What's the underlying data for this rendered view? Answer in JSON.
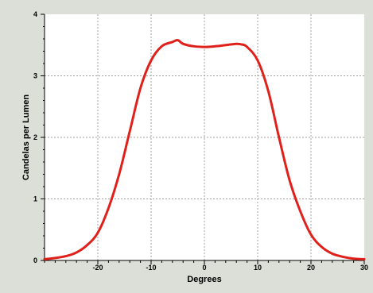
{
  "chart_data": {
    "type": "line",
    "title": "",
    "xlabel": "Degrees",
    "ylabel": "Candelas per Lumen",
    "xlim": [
      -30,
      30
    ],
    "ylim": [
      0,
      4
    ],
    "x_ticks": [
      -20,
      -10,
      0,
      10,
      20,
      30
    ],
    "x_tick_labels": [
      "-20",
      "-10",
      "0",
      "10",
      "20",
      "30"
    ],
    "y_ticks": [
      0,
      1,
      2,
      3,
      4
    ],
    "y_tick_labels": [
      "0",
      "1",
      "2",
      "3",
      "4"
    ],
    "grid": true,
    "legend": "none",
    "colors": {
      "line": "#e0201a",
      "plot_bg": "#ffffff",
      "panel_bg": "#dcdfd8",
      "grid": "#a0a0a0"
    },
    "series": [
      {
        "x": [
          -30,
          -28,
          -26,
          -24,
          -22,
          -20,
          -18,
          -16,
          -14,
          -12,
          -10,
          -8,
          -6,
          -5,
          -4,
          -2,
          0,
          2,
          4,
          6,
          7,
          8,
          10,
          12,
          14,
          16,
          18,
          20,
          22,
          24,
          26,
          28,
          30
        ],
        "values": [
          0.02,
          0.04,
          0.07,
          0.13,
          0.25,
          0.45,
          0.85,
          1.4,
          2.1,
          2.8,
          3.25,
          3.48,
          3.55,
          3.58,
          3.52,
          3.48,
          3.47,
          3.48,
          3.5,
          3.52,
          3.51,
          3.47,
          3.25,
          2.75,
          2.0,
          1.3,
          0.8,
          0.42,
          0.22,
          0.11,
          0.06,
          0.03,
          0.02
        ]
      }
    ]
  }
}
